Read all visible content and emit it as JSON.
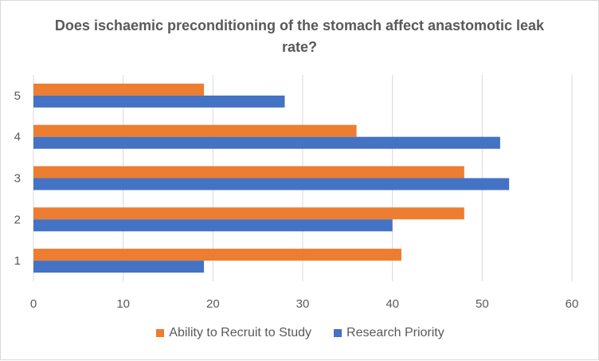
{
  "chart_data": {
    "type": "bar",
    "orientation": "horizontal",
    "title": "Does ischaemic preconditioning of the stomach affect anastomotic leak rate?",
    "categories": [
      "1",
      "2",
      "3",
      "4",
      "5"
    ],
    "series": [
      {
        "name": "Research Priority",
        "color": "#4472C4",
        "values": [
          19,
          40,
          53,
          52,
          28
        ]
      },
      {
        "name": "Ability to Recruit to Study",
        "color": "#ED7D31",
        "values": [
          41,
          48,
          48,
          36,
          19
        ]
      }
    ],
    "xlim": [
      0,
      60
    ],
    "xticks": [
      "0",
      "10",
      "20",
      "30",
      "40",
      "50",
      "60"
    ],
    "grid": true,
    "legend": "bottom"
  }
}
